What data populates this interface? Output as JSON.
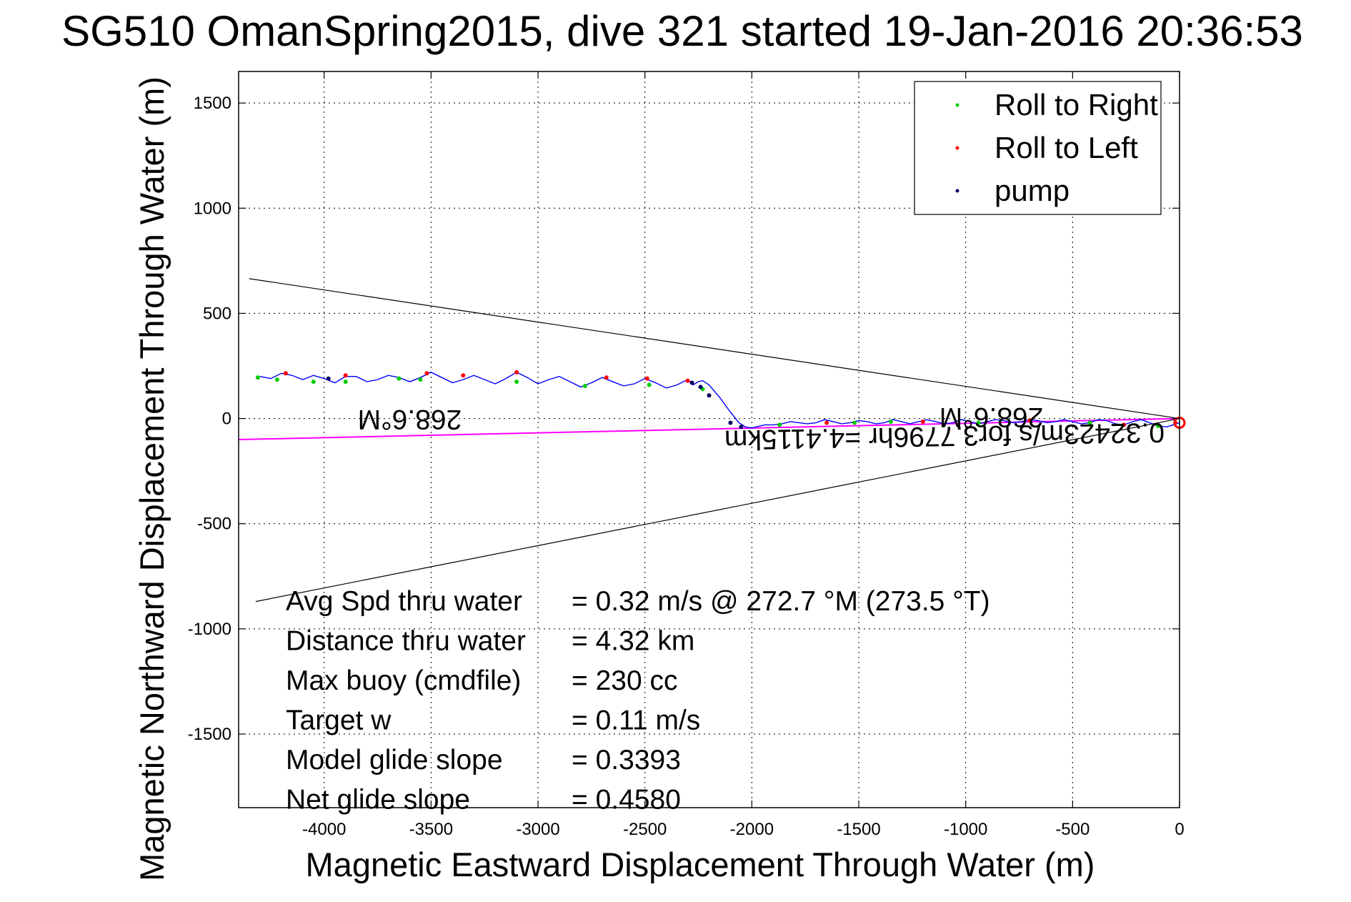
{
  "title": "SG510 OmanSpring2015, dive 321 started 19-Jan-2016 20:36:53",
  "chart_data": {
    "type": "scatter",
    "title": "SG510 OmanSpring2015, dive 321 started 19-Jan-2016 20:36:53",
    "xlabel": "Magnetic Eastward Displacement Through Water (m)",
    "ylabel": "Magnetic Northward Displacement Through Water (m)",
    "xlim": [
      -4400,
      0
    ],
    "ylim": [
      -1850,
      1650
    ],
    "xticks": [
      -4000,
      -3500,
      -3000,
      -2500,
      -2000,
      -1500,
      -1000,
      -500,
      0
    ],
    "yticks": [
      1500,
      1000,
      500,
      0,
      -500,
      -1000,
      -1500
    ],
    "grid": true,
    "legend_position": "top-right",
    "legend": [
      {
        "label": "Roll to Right",
        "color": "#00cc00"
      },
      {
        "label": "Roll to Left",
        "color": "#ff0000"
      },
      {
        "label": "pump",
        "color": "#000060"
      }
    ],
    "track": {
      "color": "#0000ff",
      "x": [
        0,
        -30,
        -60,
        -100,
        -140,
        -180,
        -220,
        -260,
        -300,
        -340,
        -380,
        -420,
        -460,
        -500,
        -540,
        -580,
        -620,
        -660,
        -700,
        -740,
        -780,
        -820,
        -860,
        -900,
        -940,
        -980,
        -1020,
        -1060,
        -1100,
        -1140,
        -1180,
        -1220,
        -1260,
        -1300,
        -1340,
        -1380,
        -1420,
        -1460,
        -1500,
        -1540,
        -1580,
        -1620,
        -1660,
        -1700,
        -1740,
        -1780,
        -1820,
        -1860,
        -1900,
        -1940,
        -1980,
        -2000,
        -2030,
        -2060,
        -2100,
        -2150,
        -2200,
        -2230,
        -2250,
        -2275,
        -2300,
        -2350,
        -2400,
        -2450,
        -2500,
        -2550,
        -2600,
        -2650,
        -2700,
        -2750,
        -2800,
        -2850,
        -2900,
        -2950,
        -3000,
        -3050,
        -3100,
        -3150,
        -3200,
        -3250,
        -3300,
        -3350,
        -3400,
        -3450,
        -3500,
        -3550,
        -3600,
        -3650,
        -3700,
        -3750,
        -3800,
        -3850,
        -3900,
        -3950,
        -4000,
        -4050,
        -4100,
        -4150,
        -4200,
        -4250,
        -4300
      ],
      "y": [
        -20,
        -30,
        -40,
        -35,
        -20,
        -5,
        -15,
        -30,
        -25,
        -10,
        -5,
        -20,
        -25,
        -15,
        -5,
        -15,
        -20,
        -10,
        -5,
        -15,
        -20,
        -10,
        -5,
        -15,
        -25,
        -15,
        -5,
        -20,
        -25,
        -15,
        -5,
        -15,
        -25,
        -15,
        -5,
        -20,
        -25,
        -15,
        -10,
        -20,
        -25,
        -15,
        -5,
        -20,
        -25,
        -20,
        -15,
        -25,
        -30,
        -30,
        -40,
        -45,
        -40,
        -20,
        30,
        100,
        160,
        180,
        175,
        160,
        185,
        160,
        145,
        170,
        190,
        165,
        155,
        175,
        195,
        170,
        150,
        175,
        200,
        185,
        165,
        195,
        220,
        190,
        165,
        185,
        205,
        185,
        170,
        195,
        220,
        195,
        175,
        195,
        205,
        185,
        175,
        200,
        200,
        170,
        190,
        205,
        185,
        205,
        215,
        190,
        200
      ]
    },
    "roll_right_points": {
      "x": [
        -100,
        -420,
        -940,
        -1350,
        -1520,
        -1870,
        -2230,
        -2480,
        -2780,
        -3100,
        -3550,
        -3650,
        -3900,
        -4050,
        -4220,
        -4310
      ],
      "y": [
        -35,
        -20,
        -20,
        -15,
        -20,
        -30,
        140,
        160,
        155,
        175,
        185,
        190,
        175,
        175,
        185,
        195
      ]
    },
    "roll_left_points": {
      "x": [
        -20,
        -260,
        -700,
        -1200,
        -1650,
        -2300,
        -2490,
        -2680,
        -3100,
        -3350,
        -3520,
        -3900,
        -4180
      ],
      "y": [
        -20,
        -30,
        -10,
        -15,
        -20,
        180,
        190,
        195,
        220,
        205,
        215,
        205,
        215
      ]
    },
    "pump_points": {
      "x": [
        -2050,
        -2100,
        -2200,
        -2240,
        -2280,
        -3980
      ],
      "y": [
        -40,
        -20,
        110,
        150,
        170,
        190
      ]
    },
    "heading_lines": [
      {
        "name": "",
        "color": "#000000",
        "x": [
          0,
          -4350
        ],
        "y": [
          0,
          665
        ]
      },
      {
        "name": "",
        "color": "#000000",
        "x": [
          0,
          -4320
        ],
        "y": [
          0,
          -870
        ]
      },
      {
        "name": "",
        "color": "#ff00ff",
        "x": [
          0,
          -4400
        ],
        "y": [
          0,
          -100
        ]
      }
    ],
    "annotations": [
      {
        "text": "268.6°M",
        "x": -3600,
        "y": 40,
        "rotation": 180
      },
      {
        "text": "268.6°M",
        "x": -880,
        "y": 50,
        "rotation": 180
      },
      {
        "text": "0.32423m/s for3.7796hr =4.4115km",
        "x": -1100,
        "y": -40,
        "rotation": 180
      }
    ]
  },
  "stats": [
    {
      "label": "Avg Spd thru water",
      "value": "=  0.32 m/s @ 272.7 °M (273.5 °T)"
    },
    {
      "label": "Distance thru water",
      "value": "=  4.32 km"
    },
    {
      "label": "Max buoy (cmdfile)",
      "value": "= 230 cc"
    },
    {
      "label": "Target w",
      "value": "= 0.11 m/s"
    },
    {
      "label": "Model glide slope",
      "value": "= 0.3393"
    },
    {
      "label": "Net glide slope",
      "value": "= 0.4580"
    }
  ]
}
